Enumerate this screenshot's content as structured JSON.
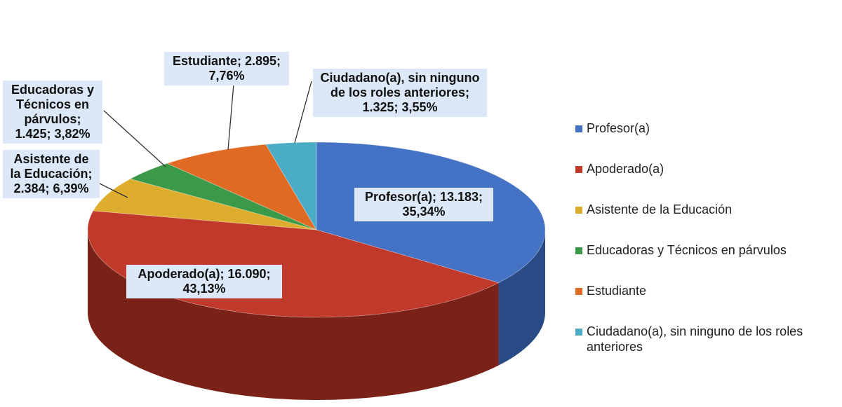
{
  "chart_data": {
    "type": "pie",
    "title": "",
    "slices": [
      {
        "name": "Profesor(a)",
        "value": 13183,
        "percent": "35,34%",
        "label": "Profesor(a); 13.183; 35,34%",
        "color": "#4472c4",
        "side": "#2a4a86"
      },
      {
        "name": "Apoderado(a)",
        "value": 16090,
        "percent": "43,13%",
        "label": "Apoderado(a); 16.090; 43,13%",
        "color": "#c0392b",
        "side": "#7a2218"
      },
      {
        "name": "Asistente de la Educación",
        "value": 2384,
        "percent": "6,39%",
        "label": "Asistente de la Educación; 2.384; 6,39%",
        "color": "#dfad2d",
        "side": "#9a7414"
      },
      {
        "name": "Educadoras y Técnicos en párvulos",
        "value": 1425,
        "percent": "3,82%",
        "label": "Educadoras y Técnicos en párvulos; 1.425; 3,82%",
        "color": "#3b9a4a",
        "side": "#22622c"
      },
      {
        "name": "Estudiante",
        "value": 2895,
        "percent": "7,76%",
        "label": "Estudiante; 2.895; 7,76%",
        "color": "#e06a24",
        "side": "#9a4210"
      },
      {
        "name": "Ciudadano(a), sin ninguno de los roles anteriores",
        "value": 1325,
        "percent": "3,55%",
        "label": "Ciudadano(a), sin ninguno de los roles anteriores; 1.325; 3,55%",
        "color": "#4bacc6",
        "side": "#2a7083"
      }
    ],
    "legend_position": "right"
  }
}
